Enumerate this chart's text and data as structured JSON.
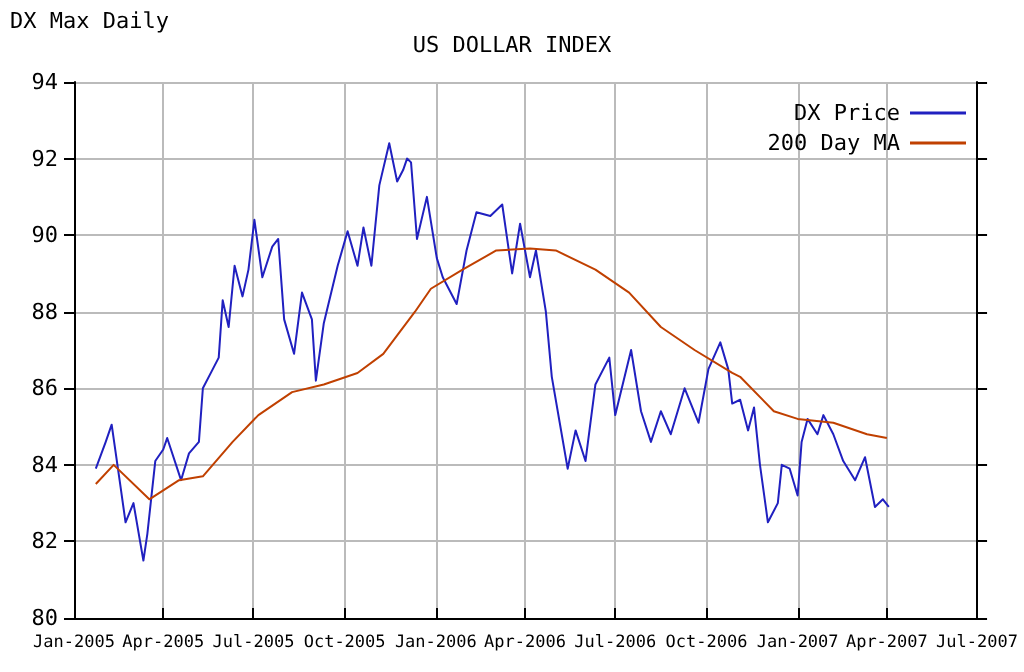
{
  "chart_data": {
    "type": "line",
    "title": "US DOLLAR INDEX",
    "subtitle": "DX Max Daily",
    "xlim": [
      "2005-01-01",
      "2007-07-01"
    ],
    "xticks": [
      {
        "value": "2005-01-01",
        "label": "Jan-2005"
      },
      {
        "value": "2005-04-01",
        "label": "Apr-2005"
      },
      {
        "value": "2005-07-01",
        "label": "Jul-2005"
      },
      {
        "value": "2005-10-01",
        "label": "Oct-2005"
      },
      {
        "value": "2006-01-01",
        "label": "Jan-2006"
      },
      {
        "value": "2006-04-01",
        "label": "Apr-2006"
      },
      {
        "value": "2006-07-01",
        "label": "Jul-2006"
      },
      {
        "value": "2006-10-01",
        "label": "Oct-2006"
      },
      {
        "value": "2007-01-01",
        "label": "Jan-2007"
      },
      {
        "value": "2007-04-01",
        "label": "Apr-2007"
      },
      {
        "value": "2007-07-01",
        "label": "Jul-2007"
      }
    ],
    "ylim": [
      80,
      94
    ],
    "yticks": [
      80,
      82,
      84,
      86,
      88,
      90,
      92,
      94
    ],
    "grid": true,
    "legend": "top right",
    "marker": "none",
    "line_style": "solid",
    "series": [
      {
        "name": "DX Price",
        "color": "#2020c0",
        "x": [
          "2005-01-23",
          "2005-02-02",
          "2005-02-08",
          "2005-02-16",
          "2005-02-22",
          "2005-03-02",
          "2005-03-12",
          "2005-03-16",
          "2005-03-24",
          "2005-04-01",
          "2005-04-05",
          "2005-04-19",
          "2005-04-27",
          "2005-05-07",
          "2005-05-11",
          "2005-05-21",
          "2005-05-27",
          "2005-05-31",
          "2005-06-06",
          "2005-06-12",
          "2005-06-20",
          "2005-06-26",
          "2005-07-02",
          "2005-07-10",
          "2005-07-20",
          "2005-07-26",
          "2005-08-01",
          "2005-08-11",
          "2005-08-19",
          "2005-08-29",
          "2005-09-02",
          "2005-09-10",
          "2005-09-24",
          "2005-10-04",
          "2005-10-14",
          "2005-10-20",
          "2005-10-28",
          "2005-11-05",
          "2005-11-15",
          "2005-11-23",
          "2005-11-29",
          "2005-12-03",
          "2005-12-07",
          "2005-12-13",
          "2005-12-23",
          "2006-01-02",
          "2006-01-08",
          "2006-01-22",
          "2006-02-01",
          "2006-02-11",
          "2006-02-25",
          "2006-03-09",
          "2006-03-19",
          "2006-03-27",
          "2006-04-06",
          "2006-04-12",
          "2006-04-22",
          "2006-04-28",
          "2006-05-06",
          "2006-05-14",
          "2006-05-22",
          "2006-06-01",
          "2006-06-11",
          "2006-06-25",
          "2006-07-01",
          "2006-07-17",
          "2006-07-27",
          "2006-08-06",
          "2006-08-16",
          "2006-08-26",
          "2006-09-09",
          "2006-09-23",
          "2006-10-03",
          "2006-10-15",
          "2006-10-23",
          "2006-10-27",
          "2006-11-04",
          "2006-11-12",
          "2006-11-18",
          "2006-11-24",
          "2006-12-02",
          "2006-12-12",
          "2006-12-16",
          "2006-12-24",
          "2007-01-01",
          "2007-01-05",
          "2007-01-11",
          "2007-01-21",
          "2007-01-27",
          "2007-02-06",
          "2007-02-16",
          "2007-02-28",
          "2007-03-10",
          "2007-03-20",
          "2007-03-28",
          "2007-04-03"
        ],
        "values": [
          83.9,
          84.6,
          85.05,
          83.6,
          82.5,
          83.0,
          81.5,
          82.2,
          84.1,
          84.4,
          84.7,
          83.6,
          84.3,
          84.6,
          86.0,
          86.5,
          86.8,
          88.3,
          87.6,
          89.2,
          88.4,
          89.1,
          90.4,
          88.9,
          89.7,
          89.9,
          87.8,
          86.9,
          88.5,
          87.8,
          86.2,
          87.7,
          89.2,
          90.1,
          89.2,
          90.2,
          89.2,
          91.3,
          92.4,
          91.4,
          91.7,
          92.0,
          91.9,
          89.9,
          91.0,
          89.4,
          88.9,
          88.2,
          89.6,
          90.6,
          90.5,
          90.8,
          89.0,
          90.3,
          88.9,
          89.6,
          88.0,
          86.3,
          85.1,
          83.9,
          84.9,
          84.1,
          86.1,
          86.8,
          85.3,
          87.0,
          85.4,
          84.6,
          85.4,
          84.8,
          86.0,
          85.1,
          86.5,
          87.2,
          86.5,
          85.6,
          85.7,
          84.9,
          85.5,
          84.0,
          82.5,
          83.0,
          84.0,
          83.9,
          83.2,
          84.6,
          85.2,
          84.8,
          85.3,
          84.8,
          84.1,
          83.6,
          84.2,
          82.9,
          83.1,
          82.9
        ]
      },
      {
        "name": "200 Day MA",
        "color": "#c04000",
        "x": [
          "2005-01-23",
          "2005-02-10",
          "2005-03-18",
          "2005-04-17",
          "2005-05-11",
          "2005-06-10",
          "2005-07-06",
          "2005-08-09",
          "2005-09-10",
          "2005-10-14",
          "2005-11-09",
          "2005-12-11",
          "2005-12-27",
          "2006-01-28",
          "2006-03-03",
          "2006-04-06",
          "2006-05-02",
          "2006-06-11",
          "2006-07-15",
          "2006-08-16",
          "2006-09-19",
          "2006-10-27",
          "2006-11-04",
          "2006-12-08",
          "2007-01-01",
          "2007-02-06",
          "2007-03-12",
          "2007-04-01"
        ],
        "values": [
          83.5,
          84.0,
          83.1,
          83.6,
          83.7,
          84.6,
          85.3,
          85.9,
          86.1,
          86.4,
          86.9,
          88.0,
          88.6,
          89.1,
          89.6,
          89.65,
          89.6,
          89.1,
          88.5,
          87.6,
          87.0,
          86.4,
          86.3,
          85.4,
          85.2,
          85.1,
          84.8,
          84.7
        ]
      }
    ]
  }
}
